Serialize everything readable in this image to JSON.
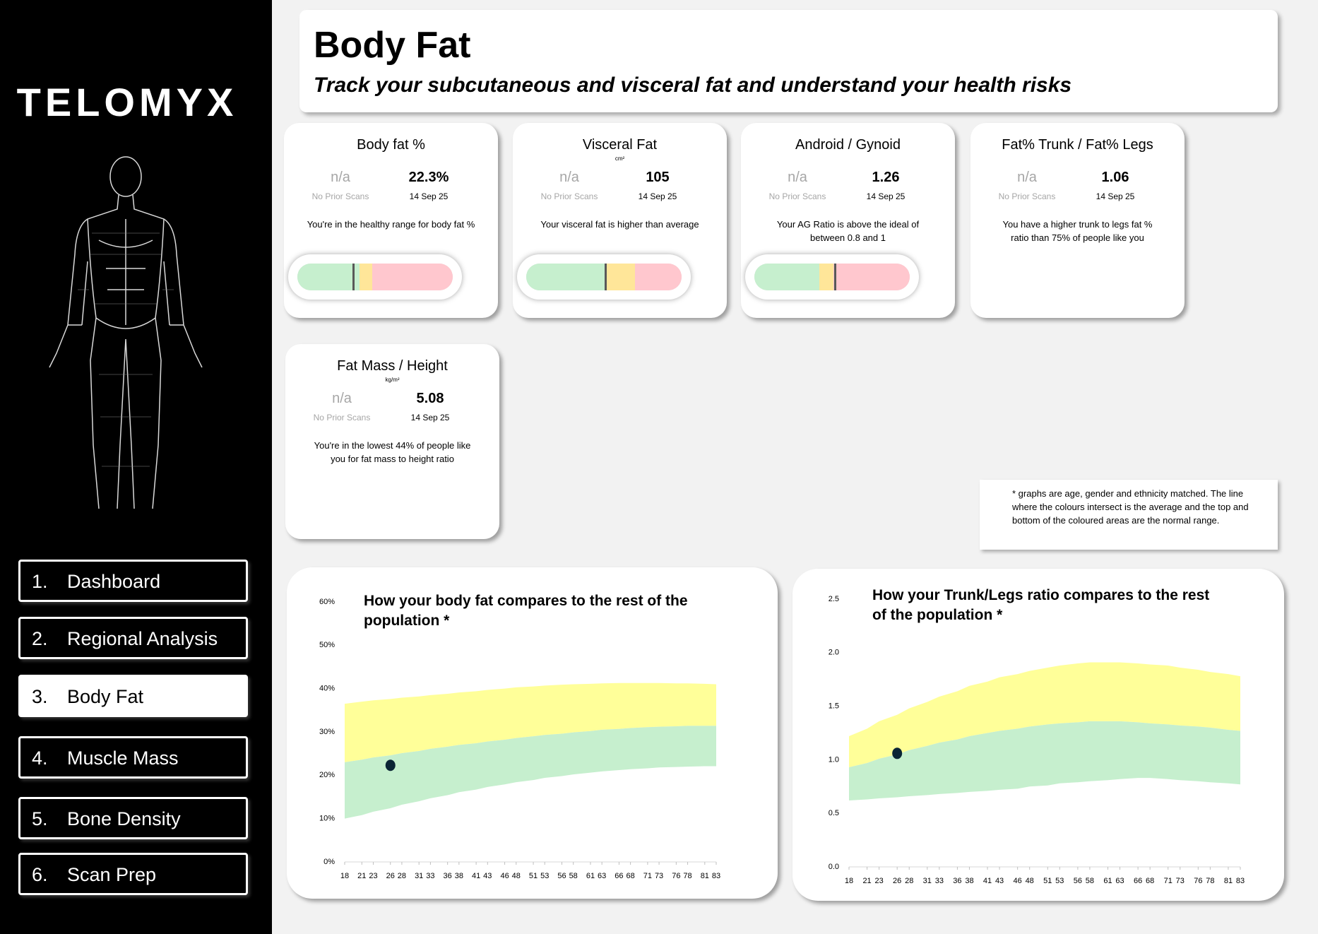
{
  "brand": "TELOMYX",
  "nav": [
    {
      "number": "1.",
      "label": "Dashboard"
    },
    {
      "number": "2.",
      "label": "Regional Analysis"
    },
    {
      "number": "3.",
      "label": "Body Fat",
      "active": true
    },
    {
      "number": "4.",
      "label": "Muscle Mass"
    },
    {
      "number": "5.",
      "label": "Bone Density"
    },
    {
      "number": "6.",
      "label": "Scan Prep"
    }
  ],
  "header": {
    "title": "Body Fat",
    "subtitle": "Track your subcutaneous and visceral fat and understand your health risks"
  },
  "cards": [
    {
      "title": "Body fat %",
      "prior": "n/a",
      "prior_note": "No Prior Scans",
      "value": "22.3%",
      "date": "14 Sep 25",
      "message": "You're in the healthy range for body fat %"
    },
    {
      "title": "Visceral Fat",
      "unit": "cm²",
      "prior": "n/a",
      "prior_note": "No Prior Scans",
      "value": "105",
      "date": "14 Sep 25",
      "message": "Your visceral fat is higher than average"
    },
    {
      "title": "Android / Gynoid",
      "prior": "n/a",
      "prior_note": "No Prior Scans",
      "value": "1.26",
      "date": "14 Sep 25",
      "message": "Your AG Ratio is above the ideal of between 0.8 and 1"
    },
    {
      "title": "Fat% Trunk / Fat% Legs",
      "prior": "n/a",
      "prior_note": "No Prior Scans",
      "value": "1.06",
      "date": "14 Sep 25",
      "message": "You have a higher trunk to legs fat % ratio than 75% of people like you"
    },
    {
      "title": "Fat Mass / Height",
      "unit": "kg/m²",
      "prior": "n/a",
      "prior_note": "No Prior Scans",
      "value": "5.08",
      "date": "14 Sep 25",
      "message": "You're in the lowest 44% of people like you for fat mass to height ratio"
    }
  ],
  "note": "* graphs are age, gender and ethnicity matched. The line where the colours intersect is the average and the top and bottom of the coloured areas are the normal range.",
  "chart_data": [
    {
      "type": "band",
      "title": "How your body fat compares to the rest of the population *",
      "x": [
        18,
        21,
        23,
        26,
        28,
        31,
        33,
        36,
        38,
        41,
        43,
        46,
        48,
        51,
        53,
        56,
        58,
        61,
        63,
        66,
        68,
        71,
        73,
        76,
        78,
        81,
        83
      ],
      "xlim": [
        18,
        83
      ],
      "ylim": [
        0,
        60
      ],
      "yticks": [
        {
          "value": 0,
          "label": "0%"
        },
        {
          "value": 10,
          "label": "10%"
        },
        {
          "value": 20,
          "label": "20%"
        },
        {
          "value": 30,
          "label": "30%"
        },
        {
          "value": 40,
          "label": "40%"
        },
        {
          "value": 50,
          "label": "50%"
        },
        {
          "value": 60,
          "label": "60%"
        }
      ],
      "series": [
        {
          "color": "#ffff99",
          "values": [
            36.5,
            37,
            37.3,
            37.6,
            37.9,
            38.2,
            38.5,
            38.8,
            39.1,
            39.4,
            39.7,
            40,
            40.3,
            40.5,
            40.7,
            40.9,
            41,
            41.1,
            41.2,
            41.3,
            41.3,
            41.3,
            41.3,
            41.2,
            41.2,
            41.1,
            41
          ]
        },
        {
          "color": "#c6efce",
          "values": [
            23,
            23.6,
            24.1,
            24.6,
            25.1,
            25.6,
            26.1,
            26.6,
            27,
            27.4,
            27.8,
            28.2,
            28.6,
            29,
            29.3,
            29.6,
            29.9,
            30.2,
            30.5,
            30.7,
            30.9,
            31.1,
            31.2,
            31.3,
            31.4,
            31.4,
            31.4
          ]
        },
        {
          "values": [
            10,
            10.8,
            11.6,
            12.4,
            13.2,
            14,
            14.7,
            15.4,
            16.1,
            16.7,
            17.3,
            17.9,
            18.4,
            18.9,
            19.4,
            19.8,
            20.2,
            20.6,
            20.9,
            21.2,
            21.4,
            21.6,
            21.8,
            21.9,
            22,
            22.1,
            22.1
          ]
        }
      ],
      "points": [
        {
          "x": 26,
          "y": 22.3,
          "color": "#0b2535"
        }
      ]
    },
    {
      "type": "band",
      "title": "How your Trunk/Legs ratio compares to the rest of the population *",
      "x": [
        18,
        21,
        23,
        26,
        28,
        31,
        33,
        36,
        38,
        41,
        43,
        46,
        48,
        51,
        53,
        56,
        58,
        61,
        63,
        66,
        68,
        71,
        73,
        76,
        78,
        81,
        83
      ],
      "xlim": [
        18,
        83
      ],
      "ylim": [
        0,
        2.5
      ],
      "yticks": [
        {
          "value": 0,
          "label": "0.0"
        },
        0.5,
        {
          "value": 1,
          "label": "1.0"
        },
        1.5,
        {
          "value": 2,
          "label": "2.0"
        },
        2.5
      ],
      "series": [
        {
          "color": "#ffff99",
          "values": [
            1.22,
            1.29,
            1.36,
            1.42,
            1.48,
            1.54,
            1.59,
            1.64,
            1.69,
            1.73,
            1.77,
            1.8,
            1.83,
            1.86,
            1.88,
            1.9,
            1.91,
            1.91,
            1.91,
            1.9,
            1.89,
            1.88,
            1.86,
            1.84,
            1.82,
            1.8,
            1.78
          ]
        },
        {
          "color": "#c6efce",
          "values": [
            0.93,
            0.97,
            1.01,
            1.05,
            1.09,
            1.13,
            1.16,
            1.19,
            1.22,
            1.25,
            1.27,
            1.29,
            1.31,
            1.33,
            1.34,
            1.35,
            1.36,
            1.36,
            1.36,
            1.35,
            1.34,
            1.33,
            1.32,
            1.31,
            1.3,
            1.28,
            1.27
          ]
        },
        {
          "values": [
            0.62,
            0.63,
            0.64,
            0.65,
            0.66,
            0.67,
            0.68,
            0.69,
            0.7,
            0.71,
            0.72,
            0.73,
            0.75,
            0.76,
            0.78,
            0.79,
            0.8,
            0.81,
            0.82,
            0.83,
            0.83,
            0.82,
            0.81,
            0.8,
            0.79,
            0.78,
            0.77
          ]
        }
      ],
      "points": [
        {
          "x": 26,
          "y": 1.06,
          "color": "#0b2535"
        }
      ]
    }
  ]
}
